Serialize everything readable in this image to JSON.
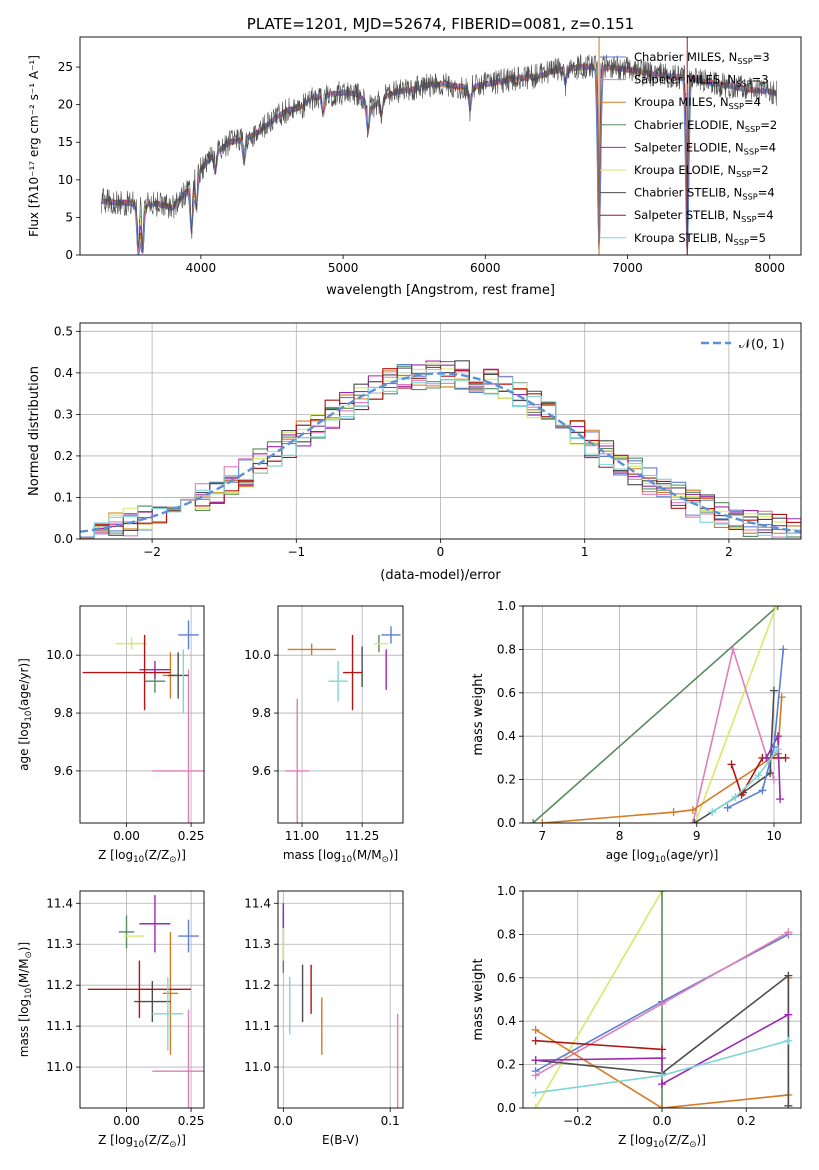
{
  "colors": {
    "Chabrier MILES": "#5b7fd6",
    "Salpeter MILES": "#e07fb8",
    "Kroupa MILES": "#d57a22",
    "Chabrier ELODIE": "#5a8a60",
    "Salpeter ELODIE": "#9a2ab0",
    "Kroupa ELODIE": "#d9e86a",
    "Chabrier STELIB": "#4d4d4d",
    "Salpeter STELIB": "#b01515",
    "Kroupa STELIB": "#7fd6d6",
    "normal": "#5b8fd6"
  },
  "chart_data": [
    {
      "id": "spectrum",
      "type": "line",
      "title": "PLATE=1201, MJD=52674, FIBERID=0081, z=0.151",
      "xlabel": "wavelength [Angstrom, rest frame]",
      "ylabel": "Flux [fλ10⁻¹⁷ erg cm⁻² s⁻¹ A⁻¹]",
      "xlim": [
        3150,
        8220
      ],
      "ylim": [
        0,
        29
      ],
      "xticks": [
        "4000",
        "5000",
        "6000",
        "7000",
        "8000"
      ],
      "yticks": [
        "0",
        "5",
        "10",
        "15",
        "20",
        "25"
      ],
      "legend_position": "top-right",
      "series": [
        {
          "label_main": "Chabrier MILES, N",
          "label_sub": "SSP",
          "label_end": "=3",
          "key": "Chabrier MILES"
        },
        {
          "label_main": "Salpeter MILES, N",
          "label_sub": "SSP",
          "label_end": "=3",
          "key": "Salpeter MILES"
        },
        {
          "label_main": "Kroupa MILES, N",
          "label_sub": "SSP",
          "label_end": "=4",
          "key": "Kroupa MILES"
        },
        {
          "label_main": "Chabrier ELODIE, N",
          "label_sub": "SSP",
          "label_end": "=2",
          "key": "Chabrier ELODIE"
        },
        {
          "label_main": "Salpeter ELODIE, N",
          "label_sub": "SSP",
          "label_end": "=4",
          "key": "Salpeter ELODIE"
        },
        {
          "label_main": "Kroupa ELODIE, N",
          "label_sub": "SSP",
          "label_end": "=2",
          "key": "Kroupa ELODIE"
        },
        {
          "label_main": "Chabrier STELIB, N",
          "label_sub": "SSP",
          "label_end": "=4",
          "key": "Chabrier STELIB"
        },
        {
          "label_main": "Salpeter STELIB, N",
          "label_sub": "SSP",
          "label_end": "=4",
          "key": "Salpeter STELIB"
        },
        {
          "label_main": "Kroupa STELIB, N",
          "label_sub": "SSP",
          "label_end": "=5",
          "key": "Kroupa STELIB"
        }
      ],
      "continuum": {
        "x": [
          3300,
          3400,
          3500,
          3600,
          3700,
          3800,
          3900,
          4000,
          4100,
          4200,
          4300,
          4400,
          4500,
          4600,
          4700,
          4800,
          4900,
          5000,
          5100,
          5200,
          5300,
          5400,
          5500,
          5600,
          5700,
          5800,
          5900,
          6000,
          6100,
          6200,
          6300,
          6400,
          6500,
          6600,
          6700,
          6800,
          6900,
          7000,
          7100,
          7200,
          7300,
          7400,
          7500,
          7600,
          7700,
          7800,
          7900,
          8000,
          8050
        ],
        "y": [
          7.2,
          7.0,
          6.9,
          6.6,
          6.8,
          6.3,
          8.5,
          11.5,
          13.5,
          15.0,
          15.3,
          16.3,
          17.8,
          19.2,
          19.6,
          21.0,
          21.3,
          21.6,
          21.4,
          19.5,
          21.2,
          21.8,
          22.1,
          22.6,
          22.8,
          22.4,
          22.3,
          22.7,
          23.0,
          23.5,
          23.6,
          23.9,
          24.6,
          24.8,
          25.1,
          25.0,
          24.9,
          24.7,
          24.3,
          24.0,
          23.8,
          23.6,
          23.3,
          22.8,
          22.6,
          22.2,
          21.9,
          21.7,
          21.5
        ]
      },
      "dips": [
        {
          "x": 3560,
          "depth": 6.5
        },
        {
          "x": 3590,
          "depth": 6.3
        },
        {
          "x": 3934,
          "depth": 6.5
        },
        {
          "x": 3969,
          "depth": 4.0
        },
        {
          "x": 4102,
          "depth": 2.5
        },
        {
          "x": 4304,
          "depth": 3.0
        },
        {
          "x": 4861,
          "depth": 2.5
        },
        {
          "x": 5175,
          "depth": 3.5
        },
        {
          "x": 5270,
          "depth": 2.0
        },
        {
          "x": 5893,
          "depth": 3.0
        },
        {
          "x": 6563,
          "depth": 2.0
        },
        {
          "x": 6800,
          "depth": 24.5
        },
        {
          "x": 7420,
          "depth": 23.5
        }
      ]
    },
    {
      "id": "residuals",
      "type": "histogram",
      "xlabel": "(data-model)/error",
      "ylabel": "Normed distribution",
      "xlim": [
        -2.5,
        2.5
      ],
      "ylim": [
        0,
        0.52
      ],
      "xticks": [
        "−2",
        "−1",
        "0",
        "1",
        "2"
      ],
      "yticks": [
        "0.0",
        "0.1",
        "0.2",
        "0.3",
        "0.4",
        "0.5"
      ],
      "bin_width": 0.1,
      "legend_position": "top-right",
      "legend_label": "𝒩(0, 1)"
    },
    {
      "id": "age-vs-Z",
      "type": "scatter",
      "xlabel_main": "Z [log",
      "xlabel_end": "(Z/Z",
      "ylabel_main": "age  [log",
      "ylabel_end": "(age/yr)]",
      "xlim": [
        -0.18,
        0.3
      ],
      "ylim": [
        9.42,
        10.17
      ],
      "xticks": [
        "0.00",
        "0.25"
      ],
      "yticks": [
        "9.6",
        "9.8",
        "10.0"
      ],
      "points": [
        {
          "key": "Chabrier MILES",
          "x": 0.24,
          "y": 10.07,
          "xerr": 0.04,
          "yerr": 0.05
        },
        {
          "key": "Salpeter MILES",
          "x": 0.24,
          "y": 9.6,
          "xerr": 0.14,
          "yerr": 0.35
        },
        {
          "key": "Kroupa MILES",
          "x": 0.17,
          "y": 9.93,
          "xerr": 0.03,
          "yerr": 0.08
        },
        {
          "key": "Chabrier ELODIE",
          "x": 0.11,
          "y": 9.91,
          "xerr": 0.04,
          "yerr": 0.04
        },
        {
          "key": "Salpeter ELODIE",
          "x": 0.11,
          "y": 9.95,
          "xerr": 0.06,
          "yerr": 0.03
        },
        {
          "key": "Kroupa ELODIE",
          "x": 0.02,
          "y": 10.04,
          "xerr": 0.06,
          "yerr": 0.02
        },
        {
          "key": "Chabrier STELIB",
          "x": 0.2,
          "y": 9.93,
          "xerr": 0.04,
          "yerr": 0.08
        },
        {
          "key": "Salpeter STELIB",
          "x": 0.0,
          "y": 9.94,
          "xerr": 0.17,
          "yerr": 0.0
        },
        {
          "key": "Salpeter STELIB",
          "x": 0.07,
          "y": 9.94,
          "xerr": 0.0,
          "yerr": 0.13
        },
        {
          "key": "Kroupa STELIB",
          "x": 0.22,
          "y": 9.91,
          "xerr": 0.0,
          "yerr": 0.11
        }
      ]
    },
    {
      "id": "age-vs-mass",
      "type": "scatter",
      "xlabel_main": "mass [log",
      "xlabel_end": "(M/M",
      "xlim": [
        10.9,
        11.42
      ],
      "ylim": [
        9.42,
        10.17
      ],
      "xticks": [
        "11.00",
        "11.25"
      ],
      "yticks": [
        "9.6",
        "9.8",
        "10.0"
      ],
      "points": [
        {
          "key": "Chabrier MILES",
          "x": 11.37,
          "y": 10.07,
          "xerr": 0.04,
          "yerr": 0.03
        },
        {
          "key": "Salpeter MILES",
          "x": 10.98,
          "y": 9.6,
          "xerr": 0.05,
          "yerr": 0.25
        },
        {
          "key": "Kroupa MILES",
          "x": 11.04,
          "y": 10.02,
          "xerr": 0.1,
          "yerr": 0.02
        },
        {
          "key": "Chabrier ELODIE",
          "x": 11.32,
          "y": 10.04,
          "xerr": 0.0,
          "yerr": 0.03
        },
        {
          "key": "Salpeter ELODIE",
          "x": 11.35,
          "y": 9.95,
          "xerr": 0.0,
          "yerr": 0.07
        },
        {
          "key": "Kroupa ELODIE",
          "x": 11.33,
          "y": 10.04,
          "xerr": 0.03,
          "yerr": 0.0
        },
        {
          "key": "Chabrier STELIB",
          "x": 11.25,
          "y": 9.96,
          "xerr": 0.0,
          "yerr": 0.07
        },
        {
          "key": "Salpeter STELIB",
          "x": 11.21,
          "y": 9.94,
          "xerr": 0.04,
          "yerr": 0.13
        },
        {
          "key": "Kroupa STELIB",
          "x": 11.15,
          "y": 9.91,
          "xerr": 0.04,
          "yerr": 0.07
        }
      ]
    },
    {
      "id": "weight-vs-age",
      "type": "line",
      "xlabel_main": "age  [log",
      "xlabel_end": "(age/yr)]",
      "ylabel": "mass weight",
      "xlim": [
        6.75,
        10.35
      ],
      "ylim": [
        0,
        1
      ],
      "xticks": [
        "7",
        "8",
        "9",
        "10"
      ],
      "yticks": [
        "0.0",
        "0.2",
        "0.4",
        "0.6",
        "0.8",
        "1.0"
      ],
      "series": [
        {
          "key": "Chabrier ELODIE",
          "x": [
            6.88,
            10.05
          ],
          "y": [
            0.0,
            1.0
          ]
        },
        {
          "key": "Kroupa ELODIE",
          "x": [
            8.98,
            10.03
          ],
          "y": [
            0.0,
            1.0
          ]
        },
        {
          "key": "Salpeter MILES",
          "x": [
            8.95,
            9.47,
            10.0
          ],
          "y": [
            0.0,
            0.8,
            0.2
          ]
        },
        {
          "key": "Kroupa MILES",
          "x": [
            7.0,
            8.7,
            8.95,
            10.05,
            10.1
          ],
          "y": [
            0.0,
            0.05,
            0.06,
            0.32,
            0.58
          ]
        },
        {
          "key": "Chabrier STELIB",
          "x": [
            8.97,
            9.6,
            9.95,
            10.0
          ],
          "y": [
            0.0,
            0.14,
            0.23,
            0.61
          ]
        },
        {
          "key": "Salpeter STELIB",
          "x": [
            9.45,
            9.58,
            9.85,
            10.15
          ],
          "y": [
            0.27,
            0.13,
            0.3,
            0.3
          ]
        },
        {
          "key": "Salpeter ELODIE",
          "x": [
            9.9,
            10.05,
            10.08
          ],
          "y": [
            0.3,
            0.4,
            0.11
          ]
        },
        {
          "key": "Chabrier MILES",
          "x": [
            9.4,
            9.85,
            10.0,
            10.12
          ],
          "y": [
            0.07,
            0.15,
            0.35,
            0.8
          ]
        },
        {
          "key": "Kroupa STELIB",
          "x": [
            9.2,
            9.5,
            9.8,
            10.05
          ],
          "y": [
            0.05,
            0.12,
            0.22,
            0.34
          ]
        }
      ]
    },
    {
      "id": "mass-vs-Z",
      "type": "scatter",
      "xlabel_main": "Z [log",
      "xlabel_end": "(Z/Z",
      "ylabel_main": "mass [log",
      "ylabel_end": "(M/M",
      "xlim": [
        -0.18,
        0.3
      ],
      "ylim": [
        10.9,
        11.43
      ],
      "xticks": [
        "0.00",
        "0.25"
      ],
      "yticks": [
        "11.0",
        "11.1",
        "11.2",
        "11.3",
        "11.4"
      ],
      "points": [
        {
          "key": "Chabrier MILES",
          "x": 0.24,
          "y": 11.32,
          "xerr": 0.04,
          "yerr": 0.04
        },
        {
          "key": "Salpeter MILES",
          "x": 0.24,
          "y": 10.99,
          "xerr": 0.14,
          "yerr": 0.15
        },
        {
          "key": "Kroupa MILES",
          "x": 0.17,
          "y": 11.18,
          "xerr": 0.03,
          "yerr": 0.15
        },
        {
          "key": "Chabrier ELODIE",
          "x": 0.0,
          "y": 11.33,
          "xerr": 0.03,
          "yerr": 0.04
        },
        {
          "key": "Salpeter ELODIE",
          "x": 0.11,
          "y": 11.35,
          "xerr": 0.06,
          "yerr": 0.07
        },
        {
          "key": "Kroupa ELODIE",
          "x": 0.03,
          "y": 11.32,
          "xerr": 0.04,
          "yerr": 0.0
        },
        {
          "key": "Chabrier STELIB",
          "x": 0.1,
          "y": 11.16,
          "xerr": 0.07,
          "yerr": 0.05
        },
        {
          "key": "Salpeter STELIB",
          "x": 0.05,
          "y": 11.19,
          "xerr": 0.2,
          "yerr": 0.07
        },
        {
          "key": "Kroupa STELIB",
          "x": 0.16,
          "y": 11.13,
          "xerr": 0.06,
          "yerr": 0.09
        }
      ]
    },
    {
      "id": "mass-vs-ebv",
      "type": "scatter",
      "xlabel": "E(B-V)",
      "xlim": [
        -0.005,
        0.112
      ],
      "ylim": [
        10.9,
        11.43
      ],
      "xticks": [
        "0.0",
        "0.1"
      ],
      "yticks": [
        "11.0",
        "11.1",
        "11.2",
        "11.3",
        "11.4"
      ],
      "points": [
        {
          "key": "Chabrier MILES",
          "x": 0.0,
          "y": 11.32,
          "xerr": 0.0,
          "yerr": 0.08
        },
        {
          "key": "Salpeter MILES",
          "x": 0.107,
          "y": 11.0,
          "xerr": 0.0,
          "yerr": 0.13
        },
        {
          "key": "Kroupa MILES",
          "x": 0.036,
          "y": 11.1,
          "xerr": 0.0,
          "yerr": 0.07
        },
        {
          "key": "Chabrier ELODIE",
          "x": 0.0,
          "y": 11.3,
          "xerr": 0.0,
          "yerr": 0.07
        },
        {
          "key": "Salpeter ELODIE",
          "x": 0.0,
          "y": 11.35,
          "xerr": 0.0,
          "yerr": 0.05
        },
        {
          "key": "Kroupa ELODIE",
          "x": 0.0,
          "y": 11.3,
          "xerr": 0.0,
          "yerr": 0.04
        },
        {
          "key": "Chabrier STELIB",
          "x": 0.018,
          "y": 11.18,
          "xerr": 0.0,
          "yerr": 0.07
        },
        {
          "key": "Salpeter STELIB",
          "x": 0.026,
          "y": 11.19,
          "xerr": 0.0,
          "yerr": 0.06
        },
        {
          "key": "Kroupa STELIB",
          "x": 0.006,
          "y": 11.15,
          "xerr": 0.0,
          "yerr": 0.07
        }
      ]
    },
    {
      "id": "weight-vs-Z",
      "type": "line",
      "xlabel_main": "Z [log",
      "xlabel_end": "(Z/Z",
      "ylabel": "mass weight",
      "xlim": [
        -0.33,
        0.33
      ],
      "ylim": [
        0,
        1
      ],
      "xticks": [
        "−0.2",
        "0.0",
        "0.2"
      ],
      "yticks": [
        "0.0",
        "0.2",
        "0.4",
        "0.6",
        "0.8",
        "1.0"
      ],
      "series": [
        {
          "key": "Kroupa ELODIE",
          "x": [
            -0.3,
            0.0
          ],
          "y": [
            0.0,
            1.0
          ]
        },
        {
          "key": "Chabrier ELODIE",
          "x": [
            0.0,
            0.0
          ],
          "y": [
            0.0,
            1.0
          ]
        },
        {
          "key": "Chabrier MILES",
          "x": [
            -0.3,
            0.0,
            0.3
          ],
          "y": [
            0.17,
            0.49,
            0.8
          ]
        },
        {
          "key": "Salpeter MILES",
          "x": [
            -0.3,
            0.0,
            0.3
          ],
          "y": [
            0.15,
            0.48,
            0.81
          ]
        },
        {
          "key": "Kroupa MILES",
          "x": [
            -0.3,
            0.0,
            0.3,
            0.3
          ],
          "y": [
            0.36,
            0.0,
            0.06,
            0.6
          ]
        },
        {
          "key": "Chabrier STELIB",
          "x": [
            -0.3,
            0.0,
            0.3,
            0.3
          ],
          "y": [
            0.22,
            0.16,
            0.61,
            0.01
          ]
        },
        {
          "key": "Salpeter STELIB",
          "x": [
            -0.3,
            0.0
          ],
          "y": [
            0.31,
            0.27
          ]
        },
        {
          "key": "Salpeter ELODIE",
          "x": [
            -0.3,
            0.0,
            0.0,
            0.3
          ],
          "y": [
            0.22,
            0.23,
            0.11,
            0.43
          ]
        },
        {
          "key": "Kroupa STELIB",
          "x": [
            -0.3,
            0.0,
            0.3
          ],
          "y": [
            0.07,
            0.15,
            0.31
          ]
        }
      ]
    }
  ]
}
